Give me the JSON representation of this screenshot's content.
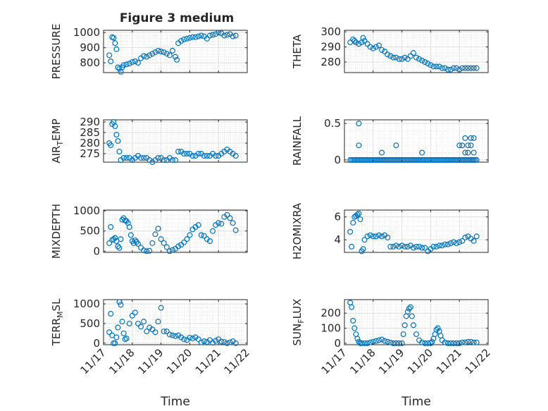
{
  "chart_data": {
    "type": "scatter",
    "title": "Figure 3 medium",
    "marker": "open-circle",
    "color": "#0072bd",
    "xlabel": "Time",
    "x_ticks": [
      "11/17",
      "11/18",
      "11/19",
      "11/20",
      "11/21",
      "11/22"
    ],
    "xlim": [
      0,
      5
    ],
    "panels": [
      {
        "id": "pressure",
        "ylabel": "PRESSURE",
        "ylim": [
          735,
          1015
        ],
        "yticks": [
          800,
          900,
          1000
        ],
        "ytick_labels": [
          "800",
          "900",
          "1000"
        ],
        "x": [
          0.2,
          0.25,
          0.3,
          0.35,
          0.4,
          0.45,
          0.5,
          0.55,
          0.6,
          0.65,
          0.7,
          0.8,
          0.9,
          1.0,
          1.1,
          1.2,
          1.3,
          1.4,
          1.5,
          1.6,
          1.7,
          1.8,
          1.9,
          2.0,
          2.1,
          2.2,
          2.3,
          2.4,
          2.5,
          2.55,
          2.6,
          2.7,
          2.8,
          2.9,
          3.0,
          3.1,
          3.2,
          3.3,
          3.4,
          3.5,
          3.6,
          3.7,
          3.8,
          3.9,
          4.0,
          4.1,
          4.2,
          4.3,
          4.4,
          4.5,
          4.6
        ],
        "values": [
          850,
          810,
          970,
          965,
          930,
          890,
          770,
          760,
          740,
          770,
          785,
          790,
          795,
          805,
          810,
          800,
          830,
          845,
          840,
          850,
          860,
          870,
          880,
          875,
          870,
          860,
          850,
          880,
          840,
          820,
          930,
          945,
          955,
          960,
          965,
          970,
          970,
          975,
          980,
          975,
          960,
          980,
          985,
          990,
          1000,
          995,
          980,
          985,
          990,
          975,
          980
        ]
      },
      {
        "id": "theta",
        "ylabel": "THETA",
        "ylim": [
          273,
          301
        ],
        "yticks": [
          280,
          290,
          300
        ],
        "ytick_labels": [
          "280",
          "290",
          "300"
        ],
        "x": [
          0.2,
          0.3,
          0.35,
          0.4,
          0.5,
          0.6,
          0.65,
          0.7,
          0.8,
          0.9,
          1.0,
          1.1,
          1.2,
          1.3,
          1.4,
          1.5,
          1.6,
          1.7,
          1.8,
          1.9,
          2.0,
          2.1,
          2.2,
          2.3,
          2.4,
          2.5,
          2.6,
          2.7,
          2.8,
          2.9,
          3.0,
          3.1,
          3.2,
          3.3,
          3.4,
          3.5,
          3.6,
          3.7,
          3.8,
          3.9,
          4.0,
          4.1,
          4.2,
          4.3,
          4.4,
          4.5,
          4.6
        ],
        "values": [
          293,
          295,
          294,
          293,
          292,
          293,
          296,
          294,
          292,
          290,
          289,
          290,
          291,
          288,
          287,
          285,
          284,
          283,
          283,
          282,
          282,
          283,
          282,
          284,
          286,
          283,
          282,
          281,
          280,
          279,
          278,
          277,
          277,
          277,
          276,
          276,
          275,
          275,
          276,
          276,
          275,
          276,
          276,
          276,
          276,
          276,
          276
        ]
      },
      {
        "id": "air_temp",
        "ylabel": "AIR_TEMP",
        "ylim": [
          271,
          291
        ],
        "yticks": [
          275,
          280,
          285,
          290
        ],
        "ytick_labels": [
          "275",
          "280",
          "285",
          "290"
        ],
        "x": [
          0.2,
          0.25,
          0.3,
          0.35,
          0.4,
          0.45,
          0.5,
          0.55,
          0.6,
          0.7,
          0.8,
          0.9,
          1.0,
          1.1,
          1.2,
          1.3,
          1.4,
          1.5,
          1.6,
          1.7,
          1.8,
          1.9,
          2.0,
          2.1,
          2.2,
          2.3,
          2.4,
          2.5,
          2.6,
          2.7,
          2.8,
          2.9,
          3.0,
          3.1,
          3.2,
          3.3,
          3.4,
          3.5,
          3.6,
          3.7,
          3.8,
          3.9,
          4.0,
          4.1,
          4.2,
          4.3,
          4.4,
          4.5,
          4.6
        ],
        "values": [
          280,
          279,
          289,
          290,
          288,
          284,
          281,
          276,
          272,
          273,
          273,
          273,
          272,
          273,
          274,
          273,
          273,
          273,
          272,
          271,
          272,
          273,
          273,
          272,
          272,
          273,
          272,
          272,
          276,
          276,
          275,
          275,
          275,
          274,
          274,
          275,
          275,
          274,
          274,
          274,
          275,
          274,
          274,
          275,
          276,
          277,
          276,
          275,
          274
        ]
      },
      {
        "id": "rainfall",
        "ylabel": "RAINFALL",
        "ylim": [
          -0.03,
          0.55
        ],
        "yticks": [
          0,
          0.5
        ],
        "ytick_labels": [
          "0",
          "0.5"
        ],
        "x": [
          0.2,
          0.25,
          0.3,
          0.35,
          0.4,
          0.45,
          0.5,
          0.55,
          0.6,
          0.65,
          0.7,
          0.75,
          0.8,
          0.85,
          0.9,
          0.95,
          1.0,
          1.05,
          1.1,
          1.15,
          1.2,
          1.25,
          1.3,
          1.35,
          1.4,
          1.45,
          1.5,
          1.55,
          1.6,
          1.65,
          1.7,
          1.75,
          1.8,
          1.85,
          1.9,
          1.95,
          2.0,
          2.05,
          2.1,
          2.15,
          2.2,
          2.25,
          2.3,
          2.35,
          2.4,
          2.45,
          2.5,
          2.55,
          2.6,
          2.65,
          2.7,
          2.75,
          2.8,
          2.85,
          2.9,
          2.95,
          3.0,
          3.05,
          3.1,
          3.15,
          3.2,
          3.25,
          3.3,
          3.35,
          3.4,
          3.45,
          3.5,
          3.55,
          3.6,
          3.65,
          3.7,
          3.75,
          3.8,
          3.85,
          3.9,
          3.95,
          4.0,
          4.05,
          4.1,
          4.15,
          4.2,
          4.25,
          4.3,
          4.35,
          4.4,
          4.45,
          4.5,
          4.55,
          4.6,
          0.5,
          0.5,
          1.3,
          1.8,
          2.7,
          4.0,
          4.1,
          4.2,
          4.3,
          4.4,
          4.5,
          4.4,
          4.2,
          4.3,
          4.5,
          4.5
        ],
        "values": [
          0,
          0,
          0,
          0,
          0,
          0,
          0,
          0,
          0,
          0,
          0,
          0,
          0,
          0,
          0,
          0,
          0,
          0,
          0,
          0,
          0,
          0,
          0,
          0,
          0,
          0,
          0,
          0,
          0,
          0,
          0,
          0,
          0,
          0,
          0,
          0,
          0,
          0,
          0,
          0,
          0,
          0,
          0,
          0,
          0,
          0,
          0,
          0,
          0,
          0,
          0,
          0,
          0,
          0,
          0,
          0,
          0,
          0,
          0,
          0,
          0,
          0,
          0,
          0,
          0,
          0,
          0,
          0,
          0,
          0,
          0,
          0,
          0,
          0,
          0,
          0,
          0,
          0,
          0,
          0,
          0,
          0,
          0,
          0,
          0,
          0,
          0,
          0,
          0,
          0.5,
          0.2,
          0.1,
          0.2,
          0.1,
          0.2,
          0.2,
          0.3,
          0.1,
          0.3,
          0.1,
          0.2,
          0.1,
          0.2,
          0.3,
          0
        ]
      },
      {
        "id": "mixdepth",
        "ylabel": "MIXDEPTH",
        "ylim": [
          -30,
          1020
        ],
        "yticks": [
          0,
          500,
          1000
        ],
        "ytick_labels": [
          "0",
          "500",
          "1000"
        ],
        "x": [
          0.2,
          0.25,
          0.3,
          0.35,
          0.4,
          0.45,
          0.5,
          0.55,
          0.6,
          0.65,
          0.7,
          0.75,
          0.8,
          0.85,
          0.9,
          0.95,
          1.0,
          1.05,
          1.1,
          1.15,
          1.2,
          1.3,
          1.4,
          1.5,
          1.6,
          1.7,
          1.8,
          1.9,
          2.0,
          2.1,
          2.2,
          2.3,
          2.4,
          2.5,
          2.6,
          2.7,
          2.8,
          2.9,
          3.0,
          3.1,
          3.2,
          3.3,
          3.4,
          3.5,
          3.6,
          3.7,
          3.8,
          3.9,
          4.0,
          4.1,
          4.2,
          4.3,
          4.4,
          4.5,
          4.6
        ],
        "values": [
          200,
          600,
          280,
          300,
          330,
          250,
          120,
          80,
          300,
          780,
          820,
          760,
          750,
          700,
          600,
          400,
          250,
          200,
          270,
          230,
          180,
          90,
          20,
          0,
          10,
          200,
          420,
          560,
          300,
          200,
          100,
          0,
          30,
          60,
          120,
          160,
          220,
          300,
          400,
          540,
          600,
          650,
          400,
          380,
          300,
          250,
          500,
          650,
          700,
          680,
          850,
          900,
          820,
          700,
          520
        ]
      },
      {
        "id": "h2omixra",
        "ylabel": "H2OMIXRA",
        "ylim": [
          2.9,
          6.6
        ],
        "yticks": [
          4,
          6
        ],
        "ytick_labels": [
          "4",
          "6"
        ],
        "x": [
          0.2,
          0.25,
          0.3,
          0.35,
          0.4,
          0.45,
          0.5,
          0.55,
          0.6,
          0.65,
          0.7,
          0.8,
          0.9,
          1.0,
          1.1,
          1.2,
          1.3,
          1.4,
          1.5,
          1.6,
          1.7,
          1.8,
          1.9,
          2.0,
          2.1,
          2.2,
          2.3,
          2.4,
          2.5,
          2.6,
          2.7,
          2.8,
          2.9,
          3.0,
          3.1,
          3.2,
          3.3,
          3.4,
          3.5,
          3.6,
          3.7,
          3.8,
          3.9,
          4.0,
          4.1,
          4.2,
          4.3,
          4.4,
          4.5,
          4.6
        ],
        "values": [
          4.7,
          3.4,
          5.5,
          6.0,
          6.1,
          6.2,
          6.3,
          5.8,
          3.0,
          3.2,
          4.0,
          4.3,
          4.4,
          4.3,
          4.3,
          4.4,
          4.3,
          4.4,
          4.2,
          3.4,
          3.4,
          3.5,
          3.4,
          3.5,
          3.4,
          3.4,
          3.5,
          3.3,
          3.4,
          3.4,
          3.3,
          3.3,
          3.0,
          3.2,
          3.4,
          3.4,
          3.5,
          3.5,
          3.6,
          3.6,
          3.7,
          3.8,
          3.7,
          3.8,
          3.9,
          4.2,
          4.3,
          4.1,
          3.9,
          4.3
        ]
      },
      {
        "id": "terr_msl",
        "ylabel": "TERR_MSL",
        "ylim": [
          -40,
          1110
        ],
        "yticks": [
          0,
          500,
          1000
        ],
        "ytick_labels": [
          "0",
          "500",
          "1000"
        ],
        "x": [
          0.2,
          0.25,
          0.3,
          0.35,
          0.4,
          0.45,
          0.5,
          0.55,
          0.6,
          0.65,
          0.7,
          0.75,
          0.8,
          0.9,
          1.0,
          1.1,
          1.2,
          1.3,
          1.4,
          1.5,
          1.6,
          1.7,
          1.8,
          1.9,
          2.0,
          2.1,
          2.2,
          2.3,
          2.4,
          2.5,
          2.6,
          2.7,
          2.8,
          2.9,
          3.0,
          3.1,
          3.2,
          3.3,
          3.4,
          3.5,
          3.6,
          3.7,
          3.8,
          3.9,
          4.0,
          4.1,
          4.2,
          4.3,
          4.4,
          4.5,
          4.6
        ],
        "values": [
          280,
          750,
          200,
          0,
          0,
          150,
          400,
          1050,
          980,
          550,
          250,
          100,
          120,
          500,
          700,
          780,
          500,
          420,
          550,
          300,
          400,
          350,
          280,
          550,
          900,
          300,
          300,
          220,
          200,
          180,
          200,
          150,
          100,
          80,
          140,
          120,
          150,
          100,
          20,
          50,
          30,
          80,
          10,
          60,
          100,
          40,
          30,
          0,
          20,
          50,
          0
        ]
      },
      {
        "id": "sun_flux",
        "ylabel": "SUN_FLUX",
        "ylim": [
          -10,
          290
        ],
        "yticks": [
          0,
          100,
          200
        ],
        "ytick_labels": [
          "0",
          "100",
          "200"
        ],
        "x": [
          0.2,
          0.25,
          0.3,
          0.35,
          0.4,
          0.45,
          0.5,
          0.55,
          0.6,
          0.7,
          0.8,
          0.9,
          1.0,
          1.1,
          1.2,
          1.3,
          1.4,
          1.5,
          1.6,
          1.7,
          1.8,
          1.9,
          2.0,
          2.05,
          2.1,
          2.15,
          2.2,
          2.25,
          2.3,
          2.35,
          2.4,
          2.5,
          2.6,
          2.7,
          2.8,
          2.9,
          3.0,
          3.05,
          3.1,
          3.15,
          3.2,
          3.25,
          3.3,
          3.35,
          3.4,
          3.5,
          3.6,
          3.7,
          3.8,
          3.9,
          4.0,
          4.1,
          4.2,
          4.3,
          4.4,
          4.5,
          4.6
        ],
        "values": [
          270,
          240,
          150,
          100,
          60,
          30,
          10,
          0,
          0,
          0,
          0,
          5,
          10,
          15,
          20,
          25,
          15,
          10,
          5,
          0,
          0,
          0,
          0,
          60,
          120,
          180,
          210,
          230,
          240,
          180,
          120,
          60,
          20,
          5,
          0,
          0,
          0,
          10,
          30,
          60,
          90,
          100,
          80,
          50,
          20,
          5,
          0,
          0,
          0,
          0,
          0,
          5,
          5,
          10,
          10,
          5,
          5
        ]
      }
    ]
  }
}
